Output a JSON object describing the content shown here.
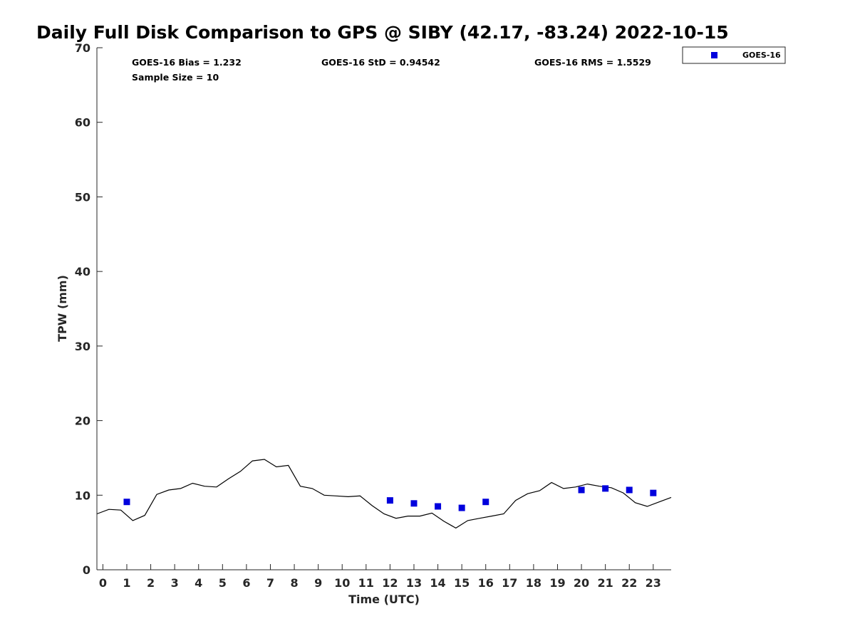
{
  "chart_data": {
    "type": "scatter",
    "title": "Daily Full Disk Comparison to GPS @ SIBY (42.17, -83.24) 2022-10-15",
    "xlabel": "Time (UTC)",
    "ylabel": "TPW (mm)",
    "xlim": [
      -0.25,
      23.75
    ],
    "ylim": [
      0,
      70
    ],
    "x_ticks": [
      0,
      1,
      2,
      3,
      4,
      5,
      6,
      7,
      8,
      9,
      10,
      11,
      12,
      13,
      14,
      15,
      16,
      17,
      18,
      19,
      20,
      21,
      22,
      23
    ],
    "y_ticks": [
      0,
      10,
      20,
      30,
      40,
      50,
      60,
      70
    ],
    "grid": false,
    "legend_position": "top-right",
    "stats": {
      "bias": "GOES-16 Bias = 1.232",
      "std": "GOES-16 StD = 0.94542",
      "rms": "GOES-16 RMS = 1.5529",
      "sample": "Sample Size = 10"
    },
    "gps_series": {
      "color": "#000000",
      "x": [
        -0.25,
        0.25,
        0.75,
        1.25,
        1.75,
        2.25,
        2.75,
        3.25,
        3.75,
        4.25,
        4.75,
        5.25,
        5.75,
        6.25,
        6.75,
        7.25,
        7.75,
        8.25,
        8.75,
        9.25,
        9.75,
        10.25,
        10.75,
        11.25,
        11.75,
        12.25,
        12.75,
        13.25,
        13.75,
        14.25,
        14.75,
        15.25,
        15.75,
        16.25,
        16.75,
        17.25,
        17.75,
        18.25,
        18.75,
        19.25,
        19.75,
        20.25,
        20.75,
        21.25,
        21.75,
        22.25,
        22.75,
        23.25,
        23.75
      ],
      "y": [
        7.5,
        8.1,
        8.0,
        6.6,
        7.3,
        10.1,
        10.7,
        10.9,
        11.6,
        11.2,
        11.1,
        12.2,
        13.2,
        14.6,
        14.8,
        13.8,
        14.0,
        11.2,
        10.9,
        10.0,
        9.9,
        9.8,
        9.9,
        8.6,
        7.5,
        6.9,
        7.2,
        7.2,
        7.6,
        6.5,
        5.6,
        6.6,
        6.9,
        7.2,
        7.5,
        9.3,
        10.2,
        10.6,
        11.7,
        10.9,
        11.1,
        11.5,
        11.2,
        11.0,
        10.3,
        9.0,
        8.5,
        9.1,
        9.7
      ]
    },
    "series": [
      {
        "name": "GOES-16",
        "color": "#0000dd",
        "marker": "square",
        "x": [
          1,
          12,
          13,
          14,
          15,
          16,
          20,
          21,
          22,
          23
        ],
        "y": [
          9.1,
          9.3,
          8.9,
          8.5,
          8.3,
          9.1,
          10.7,
          10.9,
          10.7,
          10.3
        ]
      }
    ]
  }
}
